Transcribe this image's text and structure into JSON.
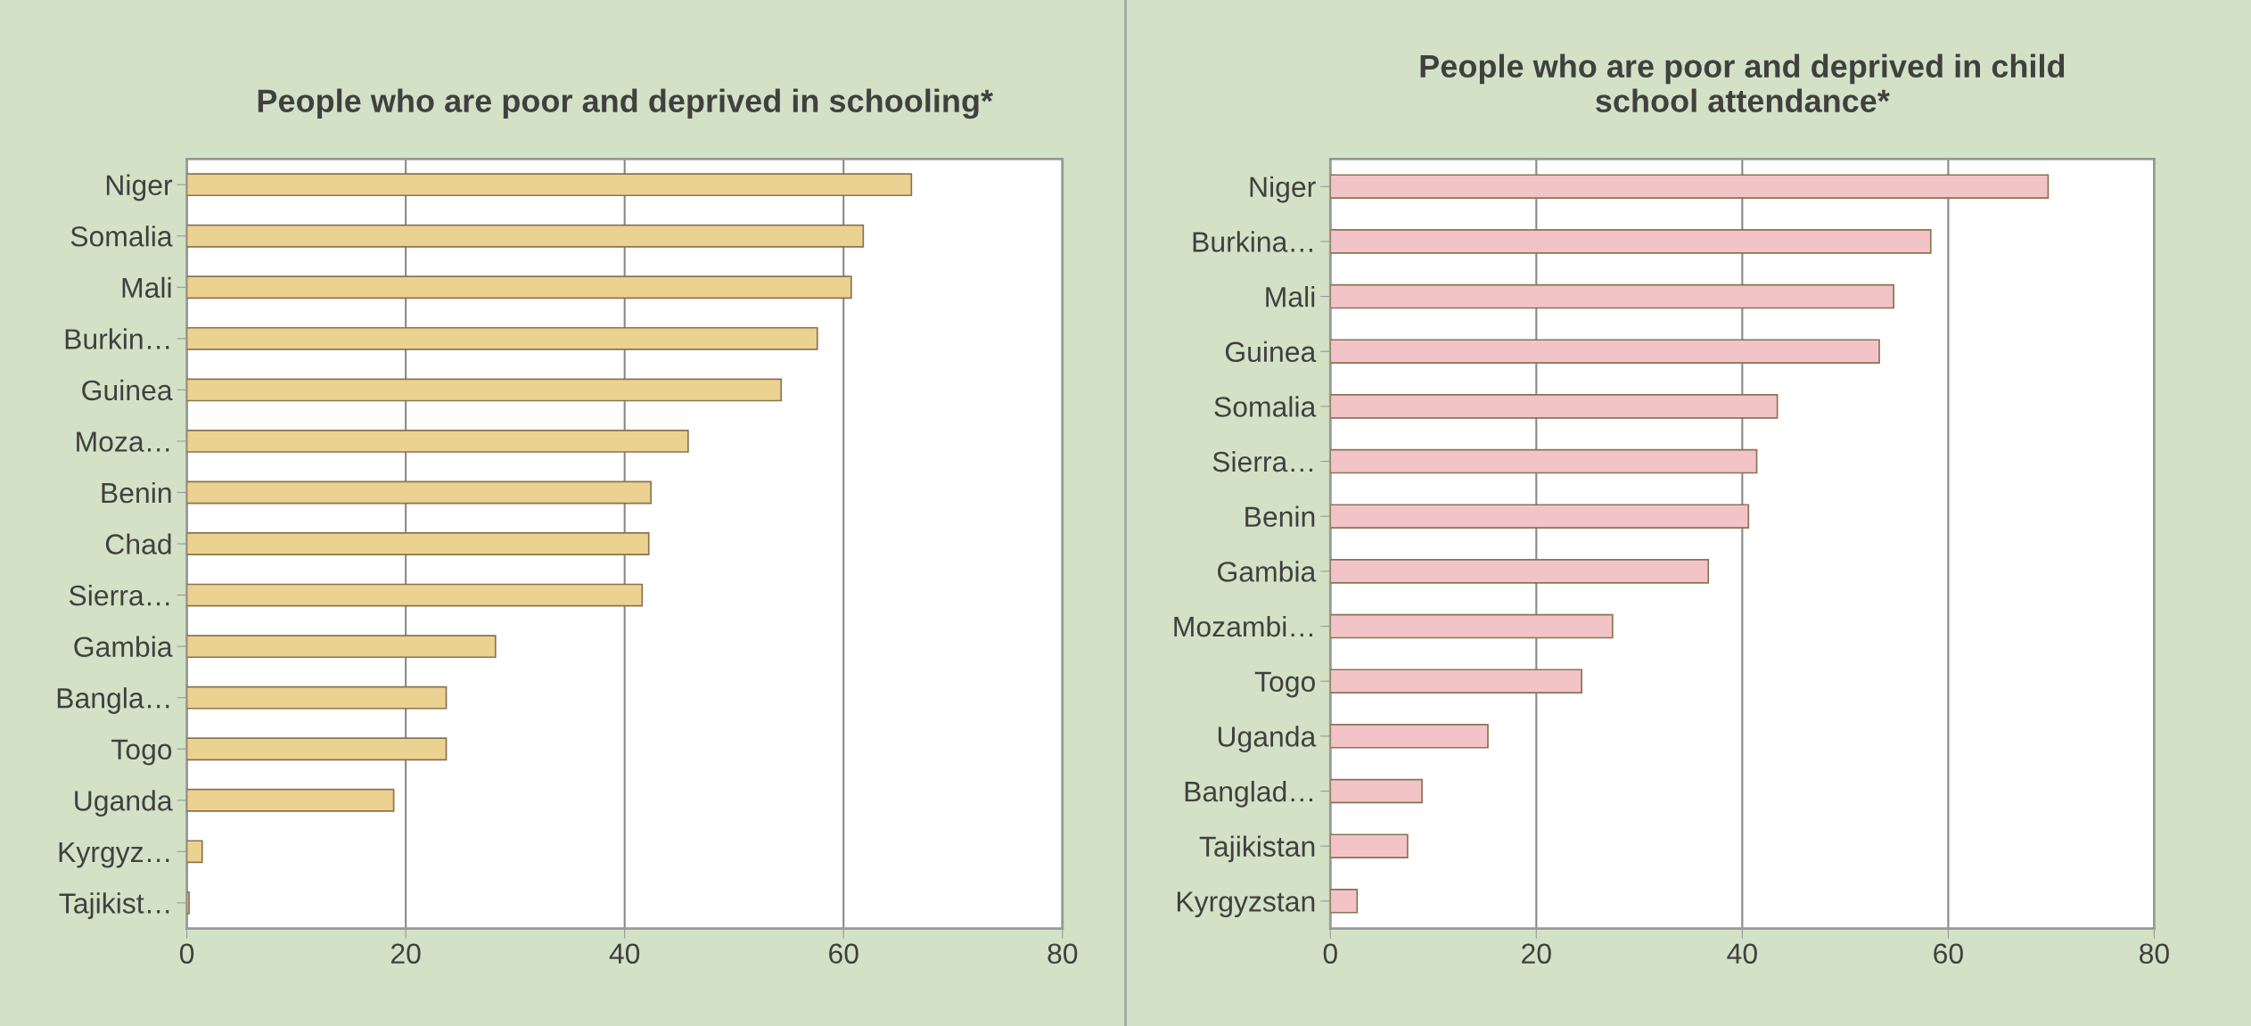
{
  "chart_data": [
    {
      "type": "bar",
      "orientation": "horizontal",
      "title": "People who are poor and deprived in schooling*",
      "categories": [
        "Niger",
        "Somalia",
        "Mali",
        "Burkin…",
        "Guinea",
        "Moza…",
        "Benin",
        "Chad",
        "Sierra…",
        "Gambia",
        "Bangla…",
        "Togo",
        "Uganda",
        "Kyrgyz…",
        "Tajikist…"
      ],
      "values": [
        66.2,
        61.8,
        60.7,
        57.6,
        54.3,
        45.8,
        42.4,
        42.2,
        41.6,
        28.2,
        23.7,
        23.7,
        18.9,
        1.4,
        0.2
      ],
      "color": "#ecd291",
      "xlim": [
        0,
        80
      ],
      "xticks": [
        0,
        20,
        40,
        60,
        80
      ],
      "grid": "x",
      "legend": false
    },
    {
      "type": "bar",
      "orientation": "horizontal",
      "title": "People who are poor and deprived in child\nschool attendance*",
      "categories": [
        "Niger",
        "Burkina…",
        "Mali",
        "Guinea",
        "Somalia",
        "Sierra…",
        "Benin",
        "Gambia",
        "Mozambi…",
        "Togo",
        "Uganda",
        "Banglad…",
        "Tajikistan",
        "Kyrgyzstan"
      ],
      "values": [
        69.7,
        58.3,
        54.7,
        53.3,
        43.4,
        41.4,
        40.6,
        36.7,
        27.4,
        24.4,
        15.3,
        8.9,
        7.5,
        2.6
      ],
      "color": "#f2c4c8",
      "xlim": [
        0,
        80
      ],
      "xticks": [
        0,
        20,
        40,
        60,
        80
      ],
      "grid": "x",
      "legend": false
    }
  ]
}
